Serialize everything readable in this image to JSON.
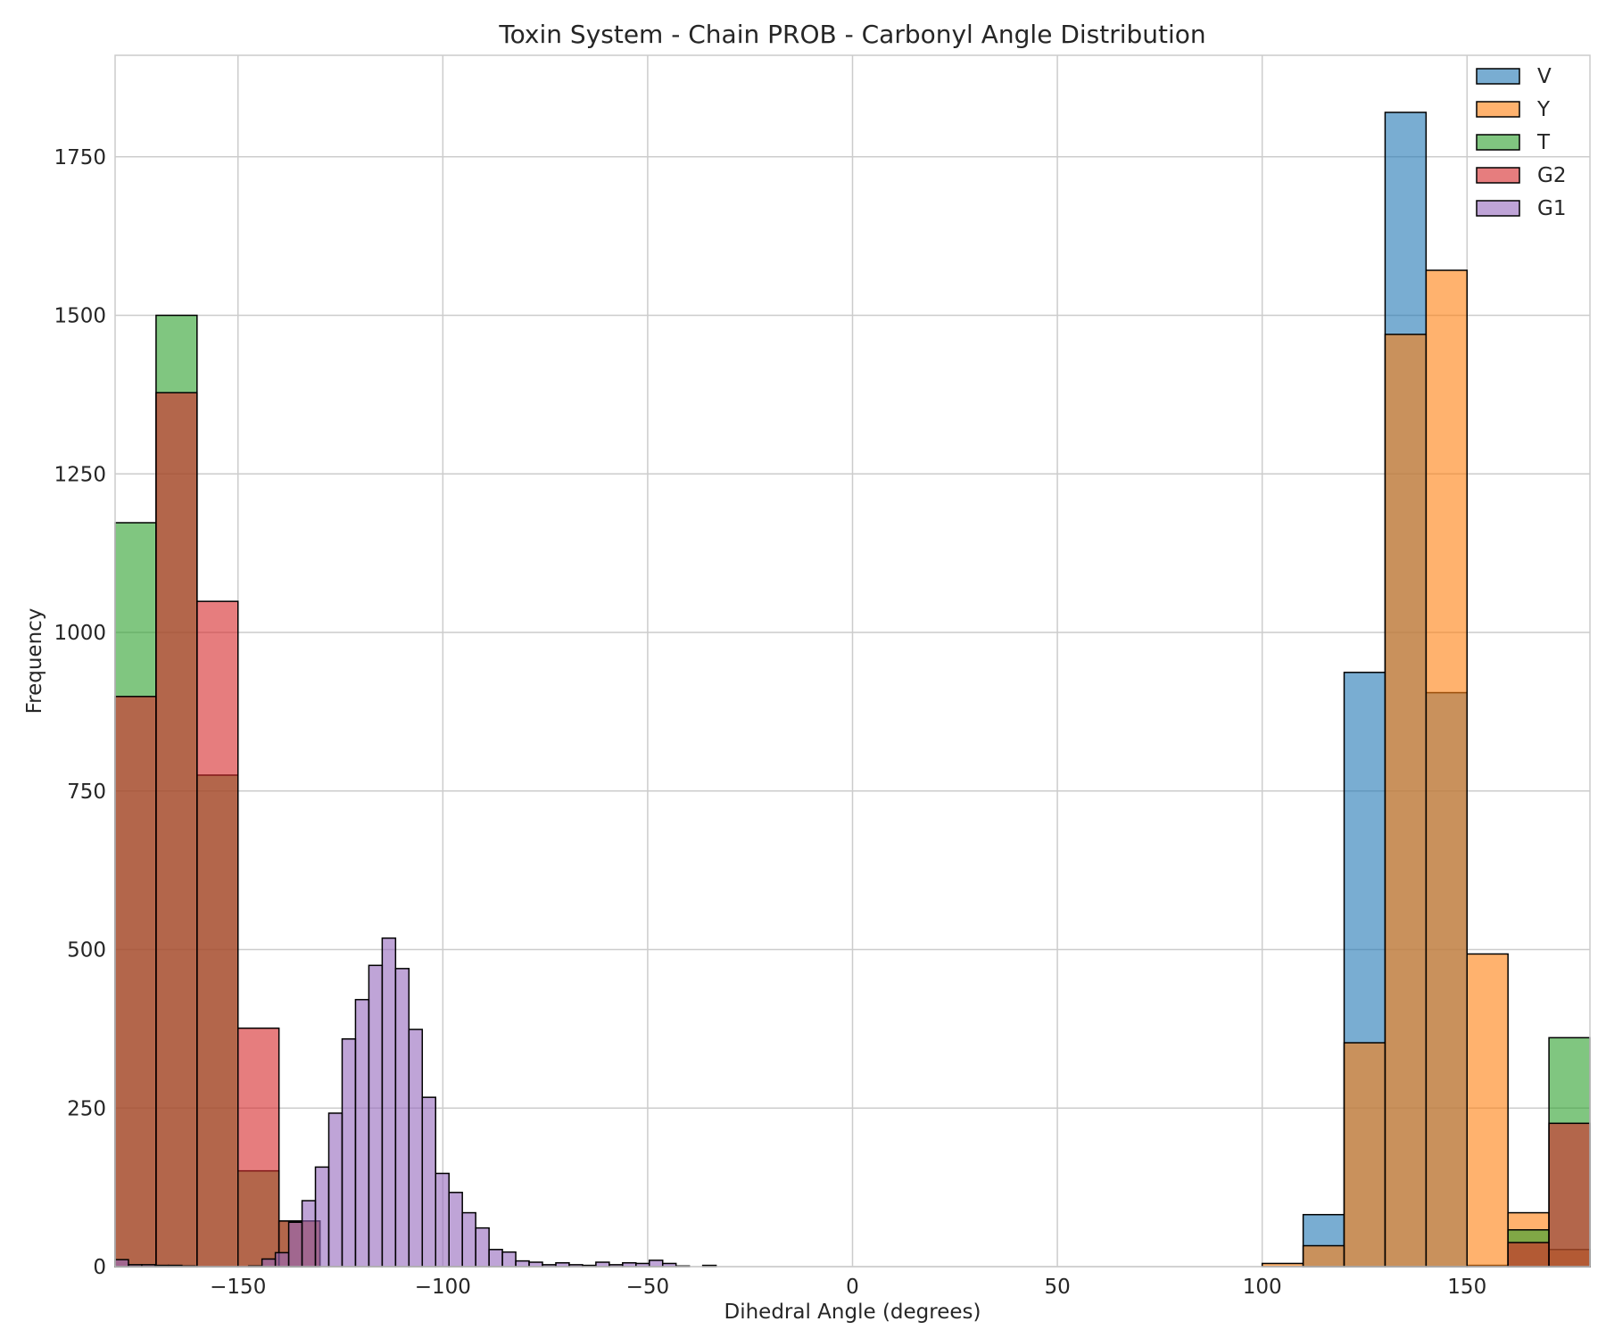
{
  "chart_data": {
    "type": "bar",
    "title": "Toxin System - Chain PROB - Carbonyl Angle Distribution",
    "xlabel": "Dihedral Angle (degrees)",
    "ylabel": "Frequency",
    "xlim": [
      -180,
      180
    ],
    "ylim": [
      0,
      1910
    ],
    "xticks": [
      -150,
      -100,
      -50,
      0,
      50,
      100,
      150
    ],
    "xtick_labels": [
      "−150",
      "−100",
      "−50",
      "0",
      "50",
      "100",
      "150"
    ],
    "yticks": [
      0,
      250,
      500,
      750,
      1000,
      1250,
      1500,
      1750
    ],
    "yticks_labels": [
      "0",
      "250",
      "500",
      "750",
      "1000",
      "1250",
      "1500",
      "1750"
    ],
    "grid": true,
    "legend_position": "top-right",
    "series": [
      {
        "name": "V",
        "color": "#1f77b4",
        "bin_width": 10,
        "bins": [
          [
            110,
            82
          ],
          [
            120,
            937
          ],
          [
            130,
            1820
          ],
          [
            140,
            905
          ],
          [
            150,
            2
          ]
        ]
      },
      {
        "name": "Y",
        "color": "#ff7f0e",
        "bin_width": 10,
        "bins": [
          [
            100,
            5
          ],
          [
            110,
            33
          ],
          [
            120,
            353
          ],
          [
            130,
            1470
          ],
          [
            140,
            1571
          ],
          [
            150,
            493
          ],
          [
            160,
            85
          ],
          [
            170,
            27
          ]
        ]
      },
      {
        "name": "T",
        "color": "#2ca02c",
        "bin_width": 10,
        "bins": [
          [
            -180,
            1173
          ],
          [
            -170,
            1500
          ],
          [
            -160,
            775
          ],
          [
            -150,
            151
          ],
          [
            -140,
            72
          ],
          [
            160,
            58
          ],
          [
            170,
            361
          ]
        ]
      },
      {
        "name": "G2",
        "color": "#d62728",
        "bin_width": 10,
        "bins": [
          [
            -180,
            899
          ],
          [
            -170,
            1378
          ],
          [
            -160,
            1049
          ],
          [
            -150,
            376
          ],
          [
            -140,
            72
          ],
          [
            160,
            38
          ],
          [
            170,
            226
          ]
        ]
      },
      {
        "name": "G1",
        "color": "#9467bd",
        "bin_width": 3.26,
        "bins": [
          [
            -180,
            11
          ],
          [
            -176.74,
            3
          ],
          [
            -173.48,
            3
          ],
          [
            -170.22,
            2
          ],
          [
            -166.96,
            2
          ],
          [
            -163.7,
            1
          ],
          [
            -147.4,
            1
          ],
          [
            -144.14,
            12
          ],
          [
            -140.88,
            22
          ],
          [
            -137.62,
            70
          ],
          [
            -134.36,
            104
          ],
          [
            -131.1,
            157
          ],
          [
            -127.84,
            242
          ],
          [
            -124.58,
            359
          ],
          [
            -121.32,
            421
          ],
          [
            -118.06,
            475
          ],
          [
            -114.8,
            518
          ],
          [
            -111.54,
            470
          ],
          [
            -108.28,
            374
          ],
          [
            -105.02,
            267
          ],
          [
            -101.76,
            147
          ],
          [
            -98.5,
            117
          ],
          [
            -95.24,
            85
          ],
          [
            -91.98,
            61
          ],
          [
            -88.72,
            27
          ],
          [
            -85.46,
            23
          ],
          [
            -82.2,
            9
          ],
          [
            -78.94,
            7
          ],
          [
            -75.68,
            3
          ],
          [
            -72.42,
            6
          ],
          [
            -69.16,
            3
          ],
          [
            -65.9,
            2
          ],
          [
            -62.64,
            7
          ],
          [
            -59.38,
            3
          ],
          [
            -56.12,
            6
          ],
          [
            -52.86,
            5
          ],
          [
            -49.6,
            10
          ],
          [
            -46.34,
            5
          ],
          [
            -43.08,
            1
          ],
          [
            -36.56,
            2
          ]
        ]
      }
    ]
  }
}
